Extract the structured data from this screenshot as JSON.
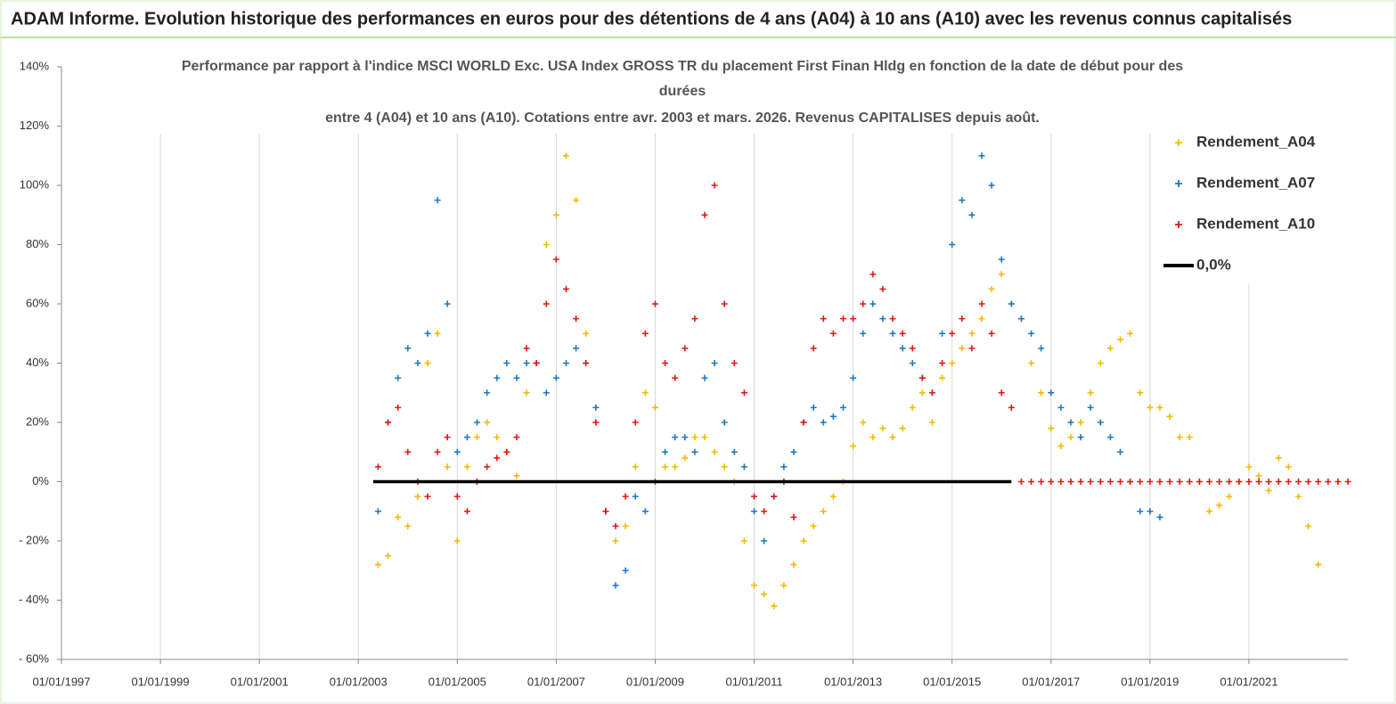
{
  "chart_data": {
    "type": "scatter",
    "title": "ADAM Informe. Evolution historique des performances en euros pour des détentions de 4 ans (A04) à 10 ans (A10) avec les revenus connus capitalisés",
    "subtitle": [
      "Performance par rapport à l'indice MSCI WORLD Exc. USA Index GROSS TR  du placement First Finan Hldg  en fonction de la date de début pour des",
      "durées",
      "entre 4 (A04) et 10 ans (A10). Cotations entre avr. 2003 et mars. 2026. Revenus CAPITALISES depuis août."
    ],
    "xlim": [
      1997,
      2023
    ],
    "xticks": [
      {
        "value": 1997,
        "label": "01/01/1997"
      },
      {
        "value": 1999,
        "label": "01/01/1999"
      },
      {
        "value": 2001,
        "label": "01/01/2001"
      },
      {
        "value": 2003,
        "label": "01/01/2003"
      },
      {
        "value": 2005,
        "label": "01/01/2005"
      },
      {
        "value": 2007,
        "label": "01/01/2007"
      },
      {
        "value": 2009,
        "label": "01/01/2009"
      },
      {
        "value": 2011,
        "label": "01/01/2011"
      },
      {
        "value": 2013,
        "label": "01/01/2013"
      },
      {
        "value": 2015,
        "label": "01/01/2015"
      },
      {
        "value": 2017,
        "label": "01/01/2017"
      },
      {
        "value": 2019,
        "label": "01/01/2019"
      },
      {
        "value": 2021,
        "label": "01/01/2021"
      }
    ],
    "ylim": [
      -60,
      140
    ],
    "yticks": [
      {
        "value": -60,
        "label": "- 60%"
      },
      {
        "value": -40,
        "label": "- 40%"
      },
      {
        "value": -20,
        "label": "- 20%"
      },
      {
        "value": 0,
        "label": "0%"
      },
      {
        "value": 20,
        "label": "20%"
      },
      {
        "value": 40,
        "label": "40%"
      },
      {
        "value": 60,
        "label": "60%"
      },
      {
        "value": 80,
        "label": "80%"
      },
      {
        "value": 100,
        "label": "100%"
      },
      {
        "value": 120,
        "label": "120%"
      },
      {
        "value": 140,
        "label": "140%"
      }
    ],
    "grid": true,
    "legend": "right",
    "series": [
      {
        "name": "Rendement_A04",
        "color": "#f5b800",
        "type": "scatter",
        "x": [
          2003.4,
          2003.6,
          2003.8,
          2004.0,
          2004.2,
          2004.4,
          2004.6,
          2004.8,
          2005.0,
          2005.2,
          2005.4,
          2005.6,
          2005.8,
          2006.0,
          2006.2,
          2006.4,
          2006.6,
          2006.8,
          2007.0,
          2007.2,
          2007.4,
          2007.6,
          2007.8,
          2008.0,
          2008.2,
          2008.4,
          2008.6,
          2008.8,
          2009.0,
          2009.2,
          2009.4,
          2009.6,
          2009.8,
          2010.0,
          2010.2,
          2010.4,
          2010.6,
          2010.8,
          2011.0,
          2011.2,
          2011.4,
          2011.6,
          2011.8,
          2012.0,
          2012.2,
          2012.4,
          2012.6,
          2012.8,
          2013.0,
          2013.2,
          2013.4,
          2013.6,
          2013.8,
          2014.0,
          2014.2,
          2014.4,
          2014.6,
          2014.8,
          2015.0,
          2015.2,
          2015.4,
          2015.6,
          2015.8,
          2016.0,
          2016.2,
          2016.4,
          2016.6,
          2016.8,
          2017.0,
          2017.2,
          2017.4,
          2017.6,
          2017.8,
          2018.0,
          2018.2,
          2018.4,
          2018.6,
          2018.8,
          2019.0,
          2019.2,
          2019.4,
          2019.6,
          2019.8,
          2020.0,
          2020.2,
          2020.4,
          2020.6,
          2020.8,
          2021.0,
          2021.2,
          2021.4,
          2021.6,
          2021.8,
          2022.0,
          2022.2,
          2022.4
        ],
        "values": [
          -28,
          -25,
          -12,
          -15,
          -5,
          40,
          50,
          5,
          -20,
          5,
          15,
          20,
          15,
          10,
          2,
          30,
          40,
          80,
          90,
          110,
          95,
          50,
          20,
          -10,
          -20,
          -15,
          5,
          30,
          25,
          5,
          5,
          8,
          15,
          15,
          10,
          5,
          0,
          -20,
          -35,
          -38,
          -42,
          -35,
          -28,
          -20,
          -15,
          -10,
          -5,
          0,
          12,
          20,
          15,
          18,
          15,
          18,
          25,
          30,
          20,
          35,
          40,
          45,
          50,
          55,
          65,
          70,
          60,
          55,
          40,
          30,
          18,
          12,
          15,
          20,
          30,
          40,
          45,
          48,
          50,
          30,
          25,
          25,
          22,
          15,
          15,
          0,
          -10,
          -8,
          -5,
          0,
          5,
          2,
          -3,
          8,
          5,
          -5,
          -15,
          -28
        ]
      },
      {
        "name": "Rendement_A07",
        "color": "#1f77c0",
        "type": "scatter",
        "x": [
          2003.4,
          2003.6,
          2003.8,
          2004.0,
          2004.2,
          2004.4,
          2004.6,
          2004.8,
          2005.0,
          2005.2,
          2005.4,
          2005.6,
          2005.8,
          2006.0,
          2006.2,
          2006.4,
          2006.6,
          2006.8,
          2007.0,
          2007.2,
          2007.4,
          2007.6,
          2007.8,
          2008.0,
          2008.2,
          2008.4,
          2008.6,
          2008.8,
          2009.0,
          2009.2,
          2009.4,
          2009.6,
          2009.8,
          2010.0,
          2010.2,
          2010.4,
          2010.6,
          2010.8,
          2011.0,
          2011.2,
          2011.4,
          2011.6,
          2011.8,
          2012.0,
          2012.2,
          2012.4,
          2012.6,
          2012.8,
          2013.0,
          2013.2,
          2013.4,
          2013.6,
          2013.8,
          2014.0,
          2014.2,
          2014.4,
          2014.6,
          2014.8,
          2015.0,
          2015.2,
          2015.4,
          2015.6,
          2015.8,
          2016.0,
          2016.2,
          2016.4,
          2016.6,
          2016.8,
          2017.0,
          2017.2,
          2017.4,
          2017.6,
          2017.8,
          2018.0,
          2018.2,
          2018.4,
          2018.6,
          2018.8,
          2019.0,
          2019.2
        ],
        "values": [
          -10,
          20,
          35,
          45,
          40,
          50,
          95,
          60,
          10,
          15,
          20,
          30,
          35,
          40,
          35,
          40,
          40,
          30,
          35,
          40,
          45,
          40,
          25,
          -10,
          -35,
          -30,
          -5,
          -10,
          0,
          10,
          15,
          15,
          10,
          35,
          40,
          20,
          10,
          5,
          -10,
          -20,
          -5,
          5,
          10,
          20,
          25,
          20,
          22,
          25,
          35,
          50,
          60,
          55,
          50,
          45,
          40,
          35,
          30,
          50,
          80,
          95,
          90,
          110,
          100,
          75,
          60,
          55,
          50,
          45,
          30,
          25,
          20,
          15,
          25,
          20,
          15,
          10,
          0,
          -10,
          -10,
          -12
        ]
      },
      {
        "name": "Rendement_A10",
        "color": "#e81414",
        "type": "scatter",
        "x": [
          2003.4,
          2003.6,
          2003.8,
          2004.0,
          2004.2,
          2004.4,
          2004.6,
          2004.8,
          2005.0,
          2005.2,
          2005.4,
          2005.6,
          2005.8,
          2006.0,
          2006.2,
          2006.4,
          2006.6,
          2006.8,
          2007.0,
          2007.2,
          2007.4,
          2007.6,
          2007.8,
          2008.0,
          2008.2,
          2008.4,
          2008.6,
          2008.8,
          2009.0,
          2009.2,
          2009.4,
          2009.6,
          2009.8,
          2010.0,
          2010.2,
          2010.4,
          2010.6,
          2010.8,
          2011.0,
          2011.2,
          2011.4,
          2011.6,
          2011.8,
          2012.0,
          2012.2,
          2012.4,
          2012.6,
          2012.8,
          2013.0,
          2013.2,
          2013.4,
          2013.6,
          2013.8,
          2014.0,
          2014.2,
          2014.4,
          2014.6,
          2014.8,
          2015.0,
          2015.2,
          2015.4,
          2015.6,
          2015.8,
          2016.0,
          2016.2,
          2016.4,
          2016.6,
          2016.8,
          2017.0,
          2017.2,
          2017.4,
          2017.6,
          2017.8,
          2018.0,
          2018.2,
          2018.4,
          2018.6,
          2018.8,
          2019.0,
          2019.2,
          2019.4,
          2019.6,
          2019.8,
          2020.0,
          2020.2,
          2020.4,
          2020.6,
          2020.8,
          2021.0,
          2021.2,
          2021.4,
          2021.6,
          2021.8,
          2022.0,
          2022.2,
          2022.4,
          2022.6,
          2022.8,
          2023.0
        ],
        "values": [
          5,
          20,
          25,
          10,
          0,
          -5,
          10,
          15,
          -5,
          -10,
          0,
          5,
          8,
          10,
          15,
          45,
          40,
          60,
          75,
          65,
          55,
          40,
          20,
          -10,
          -15,
          -5,
          20,
          50,
          60,
          40,
          35,
          45,
          55,
          90,
          100,
          60,
          40,
          30,
          -5,
          -10,
          -5,
          0,
          -12,
          20,
          45,
          55,
          50,
          55,
          55,
          60,
          70,
          65,
          55,
          50,
          45,
          35,
          30,
          40,
          50,
          55,
          45,
          60,
          50,
          30,
          25,
          0,
          0,
          0,
          0,
          0,
          0,
          0,
          0,
          0,
          0,
          0,
          0,
          0,
          0,
          0,
          0,
          0,
          0,
          0,
          0,
          0,
          0,
          0,
          0,
          0,
          0,
          0,
          0,
          0,
          0,
          0,
          0,
          0,
          0
        ]
      },
      {
        "name": "0,0%",
        "color": "#000000",
        "type": "line",
        "x": [
          2003.3,
          2016.2
        ],
        "values": [
          0,
          0
        ]
      }
    ]
  }
}
